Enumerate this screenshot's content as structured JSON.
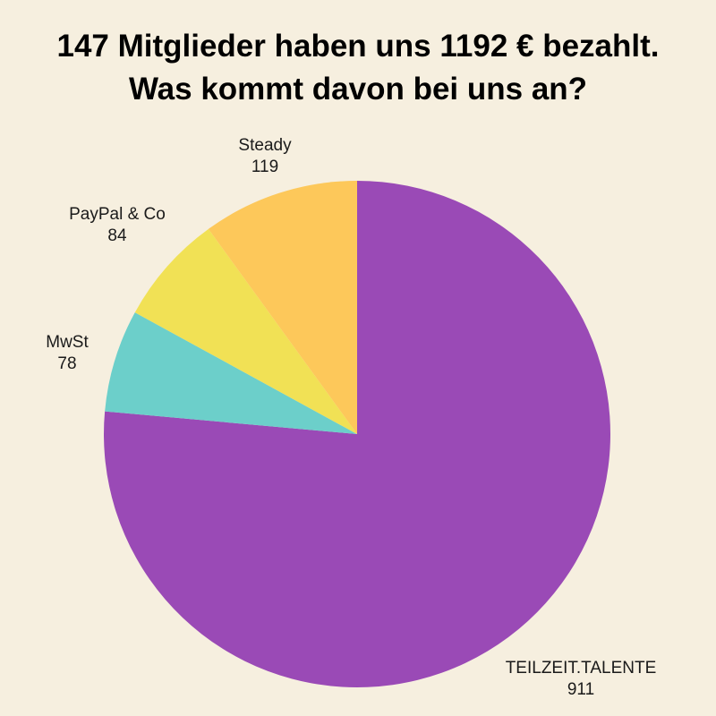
{
  "title": {
    "line1": "147 Mitglieder haben uns 1192 € bezahlt.",
    "line2": "Was kommt davon bei uns an?"
  },
  "chart_data": {
    "type": "pie",
    "total": 1192,
    "start_angle_deg": 0,
    "direction": "clockwise",
    "slices": [
      {
        "label": "TEILZEIT.TALENTE",
        "value": 911,
        "color": "#9a4ab6"
      },
      {
        "label": "MwSt",
        "value": 78,
        "color": "#6ccfca"
      },
      {
        "label": "PayPal & Co",
        "value": 84,
        "color": "#f1e155"
      },
      {
        "label": "Steady",
        "value": 119,
        "color": "#fdc85a"
      }
    ]
  }
}
